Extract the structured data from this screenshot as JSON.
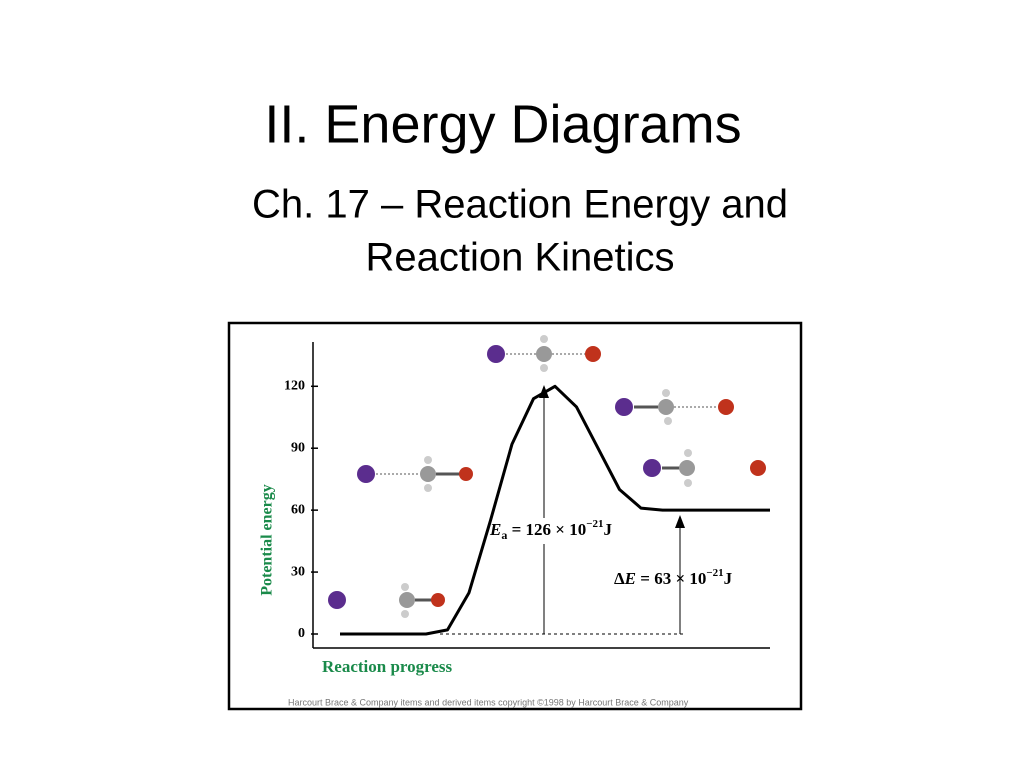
{
  "slide": {
    "title": "II. Energy Diagrams",
    "subtitle_lines": [
      "Ch. 17 – Reaction Energy and",
      "Reaction Kinetics"
    ]
  },
  "chart_data": {
    "type": "line",
    "y_label": "Potential energy",
    "x_label": "Reaction progress",
    "categories": [
      null,
      null,
      null,
      null,
      null,
      null,
      null,
      null,
      null,
      null,
      null,
      null,
      null,
      null,
      null,
      null,
      null,
      null,
      null,
      null,
      null
    ],
    "series": [
      {
        "name": null,
        "color": "#000000",
        "values": [
          0,
          0,
          0,
          0,
          0,
          2,
          20,
          55,
          92,
          114,
          120,
          110,
          90,
          70,
          61,
          60,
          60,
          60,
          60,
          60,
          60
        ]
      }
    ],
    "ylim": [
      0,
      140
    ],
    "yticks": [
      0,
      30,
      60,
      90,
      120
    ],
    "annotations": [
      {
        "parts": [
          "E",
          "a",
          " = 126 × 10",
          "−21",
          "J"
        ]
      },
      {
        "parts": [
          "Δ",
          "E",
          " = 63 × 10",
          "−21",
          "J"
        ]
      }
    ],
    "credit": "Harcourt Brace & Company items and derived items copyright ©1998 by Harcourt Brace & Company"
  }
}
